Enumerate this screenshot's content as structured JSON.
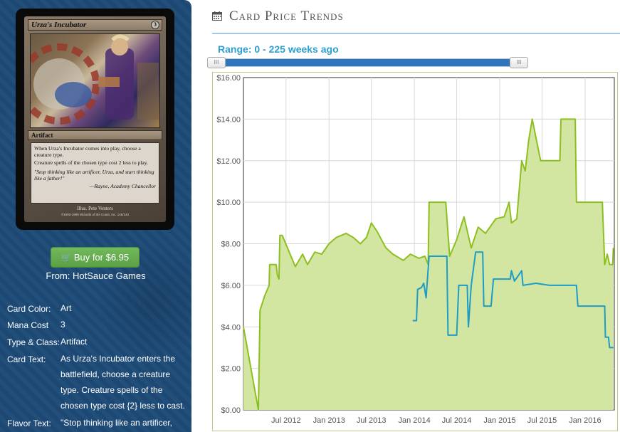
{
  "card": {
    "name": "Urza's Incubator",
    "mana_symbol": "3",
    "type_line": "Artifact",
    "text_1": "When Urza's Incubator comes into play, choose a creature type.",
    "text_2": "Creature spells of the chosen type cost 2 less to play.",
    "flavor": "\"Stop thinking like an artificer, Urza, and start thinking like a father!\"",
    "flavor_attribution": "—Rayne, Academy Chancellor",
    "illustrator": "Illus. Pete Venters",
    "copyright": "©1993-1999 Wizards of the Coast, Inc. 145/143"
  },
  "buy": {
    "label": "Buy for $6.95",
    "from": "From: HotSauce Games"
  },
  "properties": {
    "color_label": "Card Color:",
    "color_value": "Art",
    "mana_label": "Mana Cost",
    "mana_value": "3",
    "type_label": "Type & Class:",
    "type_value": "Artifact",
    "text_label": "Card Text:",
    "text_value": "As Urza's Incubator enters the battlefield, choose a creature type. Creature spells of the chosen type cost {2} less to cast.",
    "flavor_label": "Flavor Text:",
    "flavor_value": "\"Stop thinking like an artificer,"
  },
  "panel": {
    "title": "Card Price Trends",
    "icon": "calendar-icon"
  },
  "range": {
    "label": "Range: 0 - 225 weeks ago",
    "min_weeks": 0,
    "max_weeks": 225
  },
  "colors": {
    "series_green": "#8cbf1f",
    "area_fill": "#d3e6a1",
    "series_blue": "#1c9cc6",
    "slider_range": "#2e74bf",
    "range_text": "#2d9fd0"
  },
  "chart_data": {
    "type": "line",
    "title": "",
    "xlabel": "",
    "ylabel": "",
    "ylim": [
      0,
      16
    ],
    "y_ticks": [
      "$0.00",
      "$2.00",
      "$4.00",
      "$6.00",
      "$8.00",
      "$10.00",
      "$12.00",
      "$14.00",
      "$16.00"
    ],
    "xlim": [
      "2012-01-01",
      "2016-05-05"
    ],
    "x_ticks": [
      {
        "label": "Jul 2012",
        "date": "2012-07-01"
      },
      {
        "label": "Jan 2013",
        "date": "2013-01-01"
      },
      {
        "label": "Jul 2013",
        "date": "2013-07-01"
      },
      {
        "label": "Jan 2014",
        "date": "2014-01-01"
      },
      {
        "label": "Jul 2014",
        "date": "2014-07-01"
      },
      {
        "label": "Jan 2015",
        "date": "2015-01-01"
      },
      {
        "label": "Jul 2015",
        "date": "2015-07-01"
      },
      {
        "label": "Jan 2016",
        "date": "2016-01-01"
      }
    ],
    "grid": true,
    "legend": "none",
    "series": [
      {
        "style": "area",
        "points": [
          [
            "2012-01-01",
            4.0
          ],
          [
            "2012-03-05",
            0.0
          ],
          [
            "2012-03-12",
            4.8
          ],
          [
            "2012-04-01",
            5.5
          ],
          [
            "2012-04-20",
            6.0
          ],
          [
            "2012-04-22",
            7.0
          ],
          [
            "2012-05-20",
            7.0
          ],
          [
            "2012-05-25",
            6.5
          ],
          [
            "2012-06-01",
            6.3
          ],
          [
            "2012-06-05",
            8.4
          ],
          [
            "2012-06-15",
            8.4
          ],
          [
            "2012-08-10",
            6.9
          ],
          [
            "2012-09-10",
            7.5
          ],
          [
            "2012-10-01",
            7.0
          ],
          [
            "2012-11-01",
            7.6
          ],
          [
            "2012-12-01",
            7.5
          ],
          [
            "2013-01-01",
            8.0
          ],
          [
            "2013-02-01",
            8.3
          ],
          [
            "2013-03-15",
            8.5
          ],
          [
            "2013-04-15",
            8.3
          ],
          [
            "2013-05-15",
            8.0
          ],
          [
            "2013-06-10",
            8.3
          ],
          [
            "2013-07-01",
            9.0
          ],
          [
            "2013-07-25",
            8.6
          ],
          [
            "2013-09-01",
            7.8
          ],
          [
            "2013-10-01",
            7.5
          ],
          [
            "2013-11-15",
            7.2
          ],
          [
            "2013-12-15",
            7.5
          ],
          [
            "2014-01-20",
            7.3
          ],
          [
            "2014-02-15",
            7.4
          ],
          [
            "2014-03-01",
            7.0
          ],
          [
            "2014-03-05",
            10.0
          ],
          [
            "2014-05-15",
            10.0
          ],
          [
            "2014-06-01",
            7.4
          ],
          [
            "2014-07-01",
            8.2
          ],
          [
            "2014-08-01",
            9.3
          ],
          [
            "2014-09-01",
            7.8
          ],
          [
            "2014-10-01",
            8.8
          ],
          [
            "2014-11-01",
            8.5
          ],
          [
            "2014-12-15",
            9.2
          ],
          [
            "2015-01-20",
            9.3
          ],
          [
            "2015-02-10",
            10.0
          ],
          [
            "2015-02-20",
            9.0
          ],
          [
            "2015-03-15",
            9.2
          ],
          [
            "2015-04-05",
            12.0
          ],
          [
            "2015-04-20",
            11.5
          ],
          [
            "2015-05-05",
            13.0
          ],
          [
            "2015-05-20",
            14.0
          ],
          [
            "2015-06-25",
            12.0
          ],
          [
            "2015-09-15",
            12.0
          ],
          [
            "2015-09-20",
            14.0
          ],
          [
            "2015-11-20",
            14.0
          ],
          [
            "2015-11-25",
            10.0
          ],
          [
            "2016-03-15",
            10.0
          ],
          [
            "2016-03-25",
            7.0
          ],
          [
            "2016-04-05",
            7.5
          ],
          [
            "2016-04-15",
            7.0
          ],
          [
            "2016-04-28",
            7.0
          ],
          [
            "2016-05-01",
            7.8
          ]
        ]
      },
      {
        "style": "line",
        "points": [
          [
            "2013-12-25",
            4.3
          ],
          [
            "2014-01-10",
            4.3
          ],
          [
            "2014-01-15",
            5.8
          ],
          [
            "2014-02-01",
            5.9
          ],
          [
            "2014-02-10",
            6.1
          ],
          [
            "2014-02-20",
            5.4
          ],
          [
            "2014-03-05",
            7.4
          ],
          [
            "2014-05-20",
            7.4
          ],
          [
            "2014-05-25",
            3.6
          ],
          [
            "2014-07-01",
            3.6
          ],
          [
            "2014-07-10",
            6.0
          ],
          [
            "2014-08-15",
            6.0
          ],
          [
            "2014-08-20",
            4.0
          ],
          [
            "2014-09-01",
            6.0
          ],
          [
            "2014-09-20",
            7.6
          ],
          [
            "2014-10-20",
            7.6
          ],
          [
            "2014-10-25",
            5.0
          ],
          [
            "2014-11-25",
            5.0
          ],
          [
            "2014-12-05",
            6.3
          ],
          [
            "2015-02-15",
            6.3
          ],
          [
            "2015-02-20",
            6.7
          ],
          [
            "2015-03-05",
            6.2
          ],
          [
            "2015-04-05",
            6.7
          ],
          [
            "2015-04-10",
            6.0
          ],
          [
            "2015-06-05",
            6.1
          ],
          [
            "2015-08-01",
            6.0
          ],
          [
            "2015-11-25",
            6.0
          ],
          [
            "2015-12-01",
            5.0
          ],
          [
            "2016-03-25",
            5.0
          ],
          [
            "2016-03-28",
            3.5
          ],
          [
            "2016-04-10",
            3.5
          ],
          [
            "2016-04-15",
            3.0
          ],
          [
            "2016-05-01",
            3.0
          ]
        ]
      }
    ]
  }
}
